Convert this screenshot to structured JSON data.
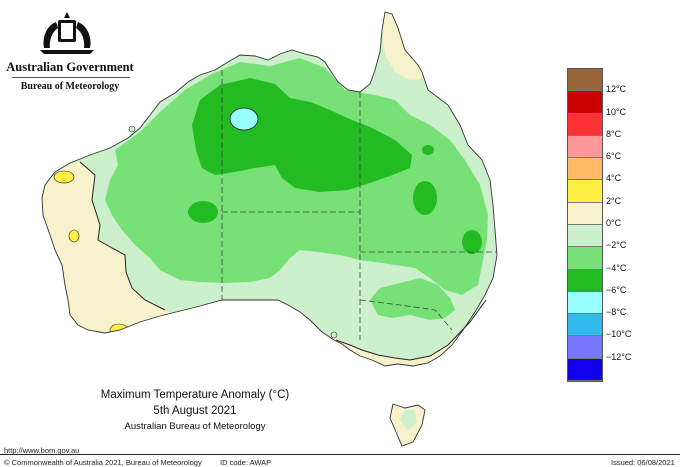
{
  "header": {
    "government": "Australian Government",
    "bureau": "Bureau of Meteorology"
  },
  "chart_title": {
    "line1": "Maximum Temperature Anomaly (°C)",
    "line2": "5th August 2021",
    "line3": "Australian Bureau of Meteorology"
  },
  "legend": [
    {
      "label": "12°C",
      "color": "#99663a"
    },
    {
      "label": "10°C",
      "color": "#cc0000"
    },
    {
      "label": "8°C",
      "color": "#ff3333"
    },
    {
      "label": "6°C",
      "color": "#ff9999"
    },
    {
      "label": "4°C",
      "color": "#ffbb66"
    },
    {
      "label": "2°C",
      "color": "#ffee44"
    },
    {
      "label": "0°C",
      "color": "#f7f2cc"
    },
    {
      "label": "−2°C",
      "color": "#ccf0cc"
    },
    {
      "label": "−4°C",
      "color": "#77e077"
    },
    {
      "label": "−6°C",
      "color": "#22bb22"
    },
    {
      "label": "−8°C",
      "color": "#99ffff"
    },
    {
      "label": "−10°C",
      "color": "#33bbee"
    },
    {
      "label": "−12°C",
      "color": "#7777ff"
    },
    {
      "label": "",
      "color": "#1100ee"
    }
  ],
  "colors": {
    "ocean": "#ffffff",
    "band_pos0_2": "#f7f2cc",
    "band_neg0_2": "#ccf0cc",
    "band_neg2_4": "#77e077",
    "band_neg4_6": "#22bb22",
    "band_neg6_8": "#99ffff",
    "band_pos2_4": "#ffee44",
    "coast": "#333333"
  },
  "footer": {
    "url": "http://www.bom.gov.au",
    "copyright": "© Commonwealth of Australia 2021, Bureau of Meteorology",
    "id_code": "ID code: AWAP",
    "issued": "Issued: 06/08/2021"
  }
}
